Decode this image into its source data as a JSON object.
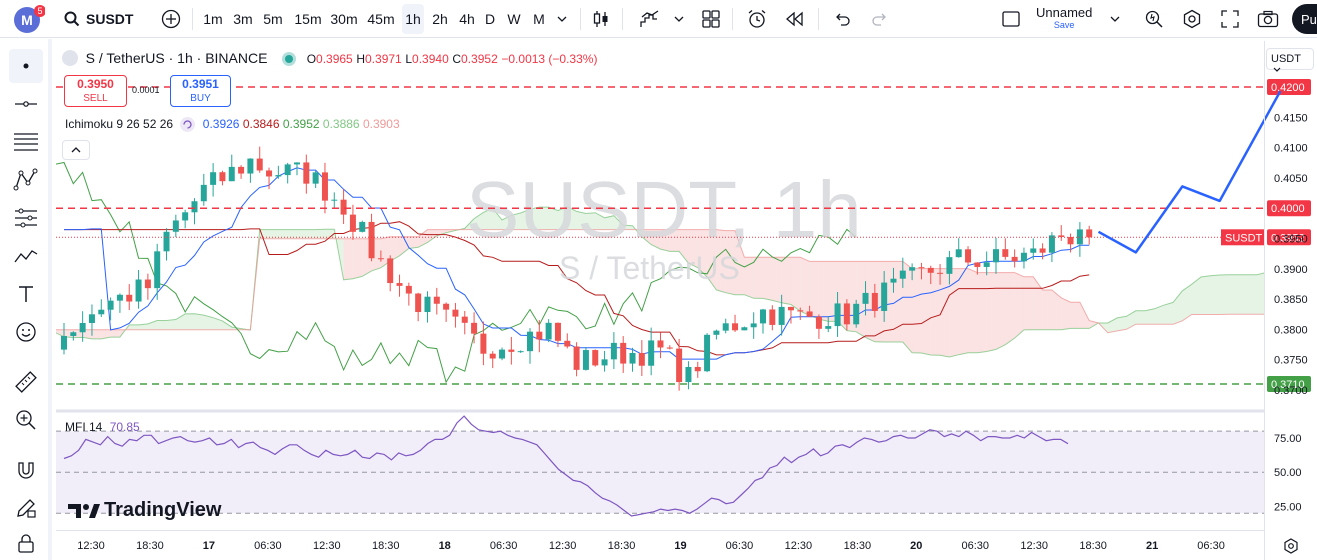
{
  "header": {
    "badge_count": "5",
    "symbol": "SUSDT",
    "timeframes": [
      "1m",
      "3m",
      "5m",
      "15m",
      "30m",
      "45m",
      "1h",
      "2h",
      "4h",
      "D",
      "W",
      "M"
    ],
    "active_timeframe": "1h",
    "layout_name": "Unnamed",
    "layout_status": "Save",
    "publish_label": "Pu"
  },
  "legend": {
    "title": "S / TetherUS · 1h · BINANCE",
    "o_label": "O",
    "o": "0.3965",
    "h_label": "H",
    "h": "0.3971",
    "l_label": "L",
    "l": "0.3940",
    "c_label": "C",
    "c": "0.3952",
    "change": "−0.0013 (−0.33%)",
    "sell_price": "0.3950",
    "sell_label": "SELL",
    "spread": "0.0001",
    "buy_price": "0.3951",
    "buy_label": "BUY",
    "ichimoku_label": "Ichimoku 9 26 52 26",
    "ichi_values": [
      "0.3926",
      "0.3846",
      "0.3952",
      "0.3886",
      "0.3903"
    ],
    "mfi_label": "MFI 14",
    "mfi_value": "70.85"
  },
  "watermark": {
    "main": "SUSDT, 1h",
    "sub": "S / TetherUS"
  },
  "brand": "TradingView",
  "currency_select": "USDT",
  "colors": {
    "up": "#26a69a",
    "down": "#ef5350",
    "tenkan": "#2962ff",
    "kijun": "#b71c1c",
    "lagging": "#43a047",
    "arrow": "#2962ff",
    "mfi": "#7e57c2",
    "support": "#43a047",
    "resistance": "#f23645"
  },
  "chart_data": {
    "type": "candlestick",
    "y_ticks": [
      "0.4150",
      "0.4100",
      "0.4050",
      "0.3950",
      "0.3900",
      "0.3850",
      "0.3800",
      "0.3750",
      "0.3700"
    ],
    "ylim": [
      0.37,
      0.4225
    ],
    "x_ticks": [
      "12:30",
      "18:30",
      "17",
      "06:30",
      "12:30",
      "18:30",
      "18",
      "06:30",
      "12:30",
      "18:30",
      "19",
      "06:30",
      "12:30",
      "18:30",
      "20",
      "06:30",
      "12:30",
      "18:30",
      "21",
      "06:30"
    ],
    "horizontal_lines": [
      {
        "price": 0.42,
        "label": "0.4200",
        "style": "dashed",
        "color": "#f23645"
      },
      {
        "price": 0.4,
        "label": "0.4000",
        "style": "dashed",
        "color": "#f23645"
      },
      {
        "price": 0.371,
        "label": "0.3710",
        "style": "dashed",
        "color": "#43a047"
      }
    ],
    "last_price": {
      "symbol": "SUSDT",
      "price": "0.3952"
    },
    "mfi": {
      "name": "MFI 14",
      "last": 70.85,
      "ticks": [
        "75.00",
        "50.00",
        "25.00"
      ]
    }
  }
}
